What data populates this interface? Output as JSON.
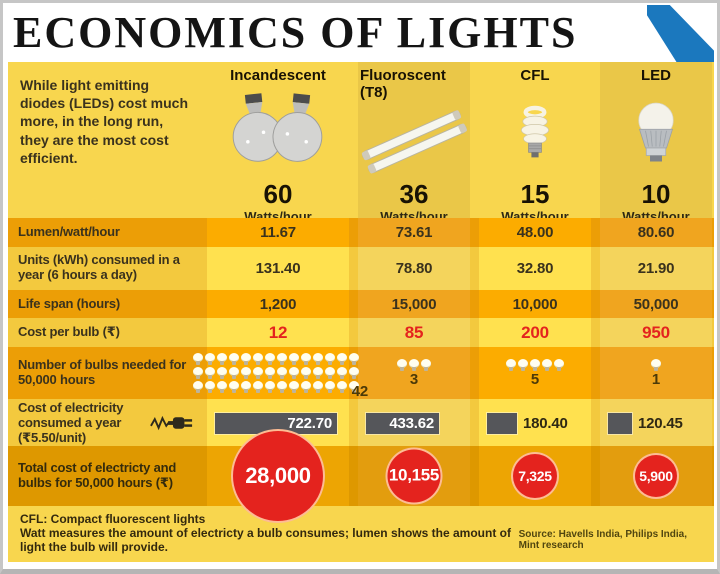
{
  "title": "ECONOMICS OF LIGHTS",
  "intro": "While light emitting diodes (LEDs) cost much more, in the long run, they are the most cost efficient.",
  "columns": [
    {
      "name": "Incandescent",
      "watts": "60",
      "unit": "Watts/hour",
      "icon": "incandescent-bulbs-icon"
    },
    {
      "name": "Fluoroscent (T8)",
      "watts": "36",
      "unit": "Watts/hour",
      "icon": "fluorescent-tubes-icon"
    },
    {
      "name": "CFL",
      "watts": "15",
      "unit": "Watts/hour",
      "icon": "cfl-bulb-icon"
    },
    {
      "name": "LED",
      "watts": "10",
      "unit": "Watts/hour",
      "icon": "led-bulb-icon"
    }
  ],
  "rows": {
    "lumen": {
      "label": "Lumen/watt/hour",
      "values": [
        "11.67",
        "73.61",
        "48.00",
        "80.60"
      ]
    },
    "units": {
      "label": "Units (kWh) consumed in a year (6 hours a day)",
      "values": [
        "131.40",
        "78.80",
        "32.80",
        "21.90"
      ]
    },
    "lifespan": {
      "label": "Life span (hours)",
      "values": [
        "1,200",
        "15,000",
        "10,000",
        "50,000"
      ]
    },
    "cost_per_bulb": {
      "label": "Cost per bulb (₹)",
      "values": [
        "12",
        "85",
        "200",
        "950"
      ]
    },
    "bulbs_needed": {
      "label": "Number of bulbs needed for 50,000 hours",
      "values": [
        42,
        3,
        5,
        1
      ]
    },
    "electricity_cost": {
      "label": "Cost of electricity consumed a year (₹5.50/unit)",
      "values": [
        "722.70",
        "433.62",
        "180.40",
        "120.45"
      ]
    },
    "total_cost": {
      "label": "Total cost of electricty and bulbs for 50,000 hours (₹)",
      "values": [
        "28,000",
        "10,155",
        "7,325",
        "5,900"
      ]
    }
  },
  "notes": {
    "cfl": "CFL: Compact fluorescent lights",
    "watt": "Watt measures the amount of electricty a bulb consumes; lumen shows the amount of light the bulb will provide.",
    "source": "Source: Havells India, Philips India, Mint research"
  },
  "colors": {
    "panel_yellow": "#F8D64E",
    "column_muted": "#EAC748",
    "row_dark": "#EC9E06",
    "row_dark_cell": "#FCAC00",
    "row_dark_cell_muted": "#F0A51F",
    "row_light": "#F3C93E",
    "row_light_cell": "#FFE14F",
    "row_light_cell_muted": "#F4D45C",
    "total_row": "#DE9800",
    "total_cell": "#EDA503",
    "total_cell_muted": "#E39D0E",
    "accent_red": "#E4231E",
    "bar_gray": "#55565A",
    "triangle_blue": "#1B78BE",
    "text_dark": "#3A321D"
  },
  "chart_data": {
    "type": "table",
    "title": "ECONOMICS OF LIGHTS",
    "categories": [
      "Incandescent",
      "Fluoroscent (T8)",
      "CFL",
      "LED"
    ],
    "series": [
      {
        "name": "Watts/hour",
        "values": [
          60,
          36,
          15,
          10
        ]
      },
      {
        "name": "Lumen/watt/hour",
        "values": [
          11.67,
          73.61,
          48.0,
          80.6
        ]
      },
      {
        "name": "Units (kWh) consumed in a year (6 hours a day)",
        "values": [
          131.4,
          78.8,
          32.8,
          21.9
        ]
      },
      {
        "name": "Life span (hours)",
        "values": [
          1200,
          15000,
          10000,
          50000
        ]
      },
      {
        "name": "Cost per bulb (₹)",
        "values": [
          12,
          85,
          200,
          950
        ]
      },
      {
        "name": "Number of bulbs needed for 50,000 hours",
        "values": [
          42,
          3,
          5,
          1
        ]
      },
      {
        "name": "Cost of electricity consumed a year (₹5.50/unit)",
        "values": [
          722.7,
          433.62,
          180.4,
          120.45
        ],
        "rendered_as": "bar"
      },
      {
        "name": "Total cost of electricty and bulbs for 50,000 hours (₹)",
        "values": [
          28000,
          10155,
          7325,
          5900
        ],
        "rendered_as": "proportional-circles"
      }
    ],
    "legend_position": "none",
    "grid": false
  }
}
